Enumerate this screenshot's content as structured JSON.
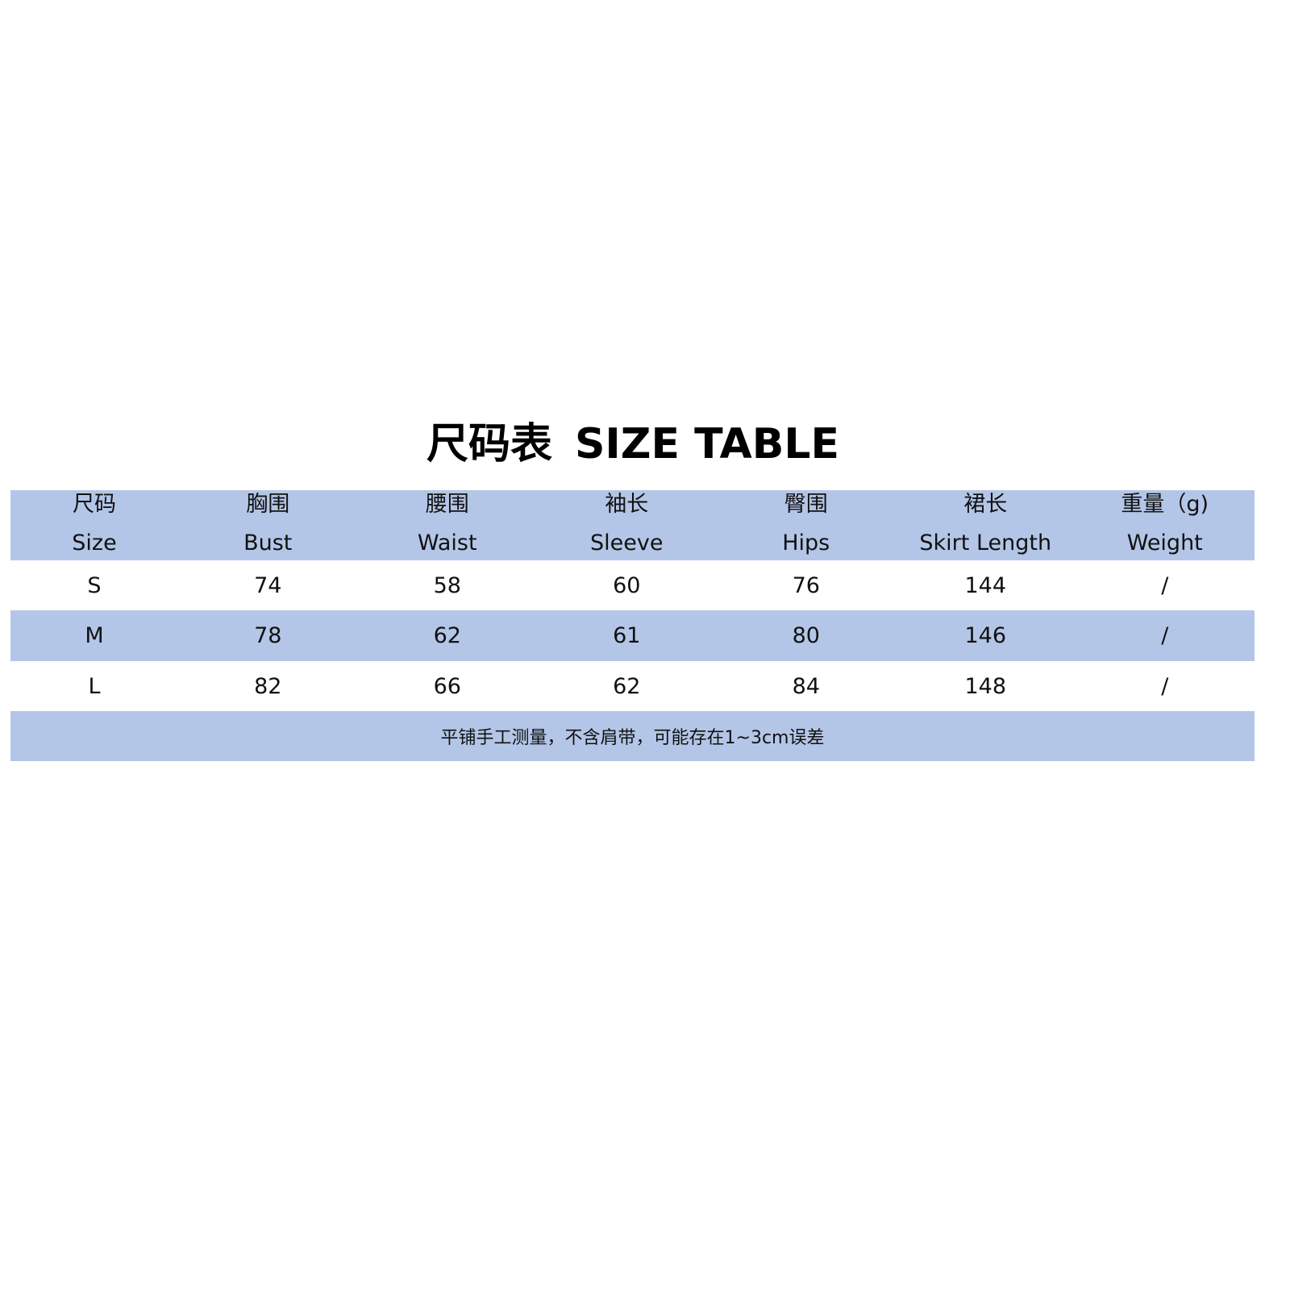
{
  "title": {
    "cn": "尺码表",
    "en": "SIZE TABLE"
  },
  "table": {
    "headers": [
      {
        "cn": "尺码",
        "en": "Size"
      },
      {
        "cn": "胸围",
        "en": "Bust"
      },
      {
        "cn": "腰围",
        "en": "Waist"
      },
      {
        "cn": "袖长",
        "en": "Sleeve"
      },
      {
        "cn": "臀围",
        "en": "Hips"
      },
      {
        "cn": "裙长",
        "en": "Skirt Length"
      },
      {
        "cn": "重量（g)",
        "en": "Weight"
      }
    ],
    "rows": [
      [
        "S",
        "74",
        "58",
        "60",
        "76",
        "144",
        "/"
      ],
      [
        "M",
        "78",
        "62",
        "61",
        "80",
        "146",
        "/"
      ],
      [
        "L",
        "82",
        "66",
        "62",
        "84",
        "148",
        "/"
      ]
    ],
    "note": "平铺手工测量，不含肩带，可能存在1~3cm误差"
  },
  "colors": {
    "band": "#b4c6e7",
    "text": "#111111"
  }
}
